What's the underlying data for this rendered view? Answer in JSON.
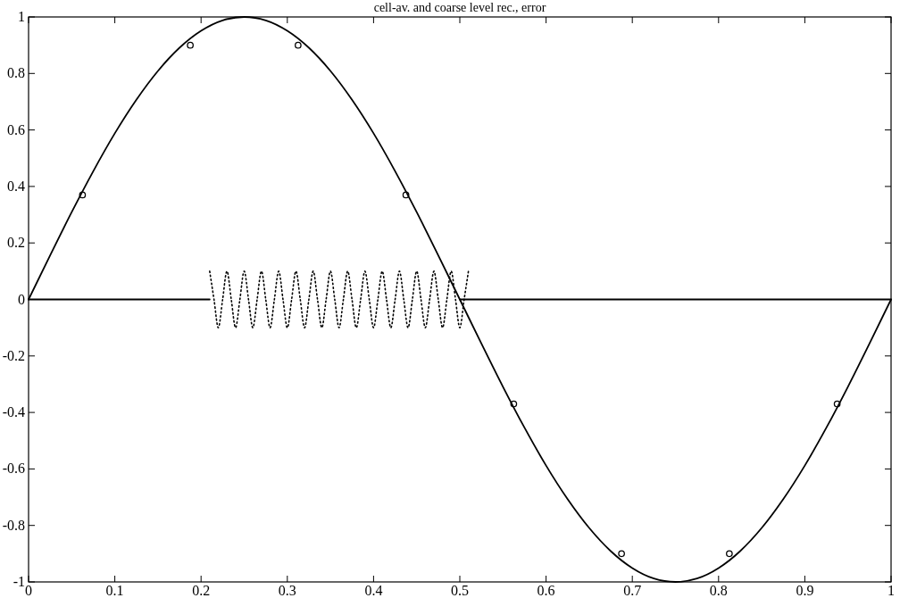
{
  "chart_data": {
    "type": "line",
    "title": "cell-av. and coarse level rec., error",
    "xlim": [
      0,
      1
    ],
    "xticks": [
      0,
      0.1,
      0.2,
      0.3,
      0.4,
      0.5,
      0.6,
      0.7,
      0.8,
      0.9,
      1
    ],
    "ylim": [
      -1,
      1
    ],
    "yticks": [
      -1,
      -0.8,
      -0.6,
      -0.4,
      -0.2,
      0,
      0.2,
      0.4,
      0.6,
      0.8,
      1
    ],
    "grid": false,
    "series": [
      {
        "color": "#000000",
        "line_style": "solid",
        "marker": "none",
        "x": [
          0,
          0.025,
          0.05,
          0.075,
          0.1,
          0.125,
          0.15,
          0.175,
          0.2,
          0.225,
          0.25,
          0.275,
          0.3,
          0.325,
          0.35,
          0.375,
          0.4,
          0.425,
          0.45,
          0.475,
          0.5,
          0.525,
          0.55,
          0.575,
          0.6,
          0.625,
          0.65,
          0.675,
          0.7,
          0.725,
          0.75,
          0.775,
          0.8,
          0.825,
          0.85,
          0.875,
          0.9,
          0.925,
          0.95,
          0.975,
          1
        ],
        "values": [
          0,
          0.156,
          0.309,
          0.454,
          0.588,
          0.707,
          0.809,
          0.891,
          0.951,
          0.988,
          1,
          0.988,
          0.951,
          0.891,
          0.809,
          0.707,
          0.588,
          0.454,
          0.309,
          0.156,
          0,
          -0.156,
          -0.309,
          -0.454,
          -0.588,
          -0.707,
          -0.809,
          -0.891,
          -0.951,
          -0.988,
          -1,
          -0.988,
          -0.951,
          -0.891,
          -0.809,
          -0.707,
          -0.588,
          -0.454,
          -0.309,
          -0.156,
          0
        ]
      },
      {
        "type": "scatter",
        "color": "#000000",
        "marker": "circle",
        "x": [
          0.0625,
          0.1875,
          0.3125,
          0.4375,
          0.5625,
          0.6875,
          0.8125,
          0.9375
        ],
        "values": [
          0.37,
          0.9,
          0.9,
          0.37,
          -0.37,
          -0.9,
          -0.9,
          -0.37
        ]
      },
      {
        "color": "#000000",
        "line_style": "solid",
        "marker": "none",
        "x": [
          0,
          0.21
        ],
        "values": [
          0,
          0
        ]
      },
      {
        "color": "#000000",
        "line_style": "dotted",
        "marker": "none",
        "x": [
          0.21,
          0.215,
          0.22,
          0.225,
          0.23,
          0.235,
          0.24,
          0.245,
          0.25,
          0.255,
          0.26,
          0.265,
          0.27,
          0.275,
          0.28,
          0.285,
          0.29,
          0.295,
          0.3,
          0.305,
          0.31,
          0.315,
          0.32,
          0.325,
          0.33,
          0.335,
          0.34,
          0.345,
          0.35,
          0.355,
          0.36,
          0.365,
          0.37,
          0.375,
          0.38,
          0.385,
          0.39,
          0.395,
          0.4,
          0.405,
          0.41,
          0.415,
          0.42,
          0.425,
          0.43,
          0.435,
          0.44,
          0.445,
          0.45,
          0.455,
          0.46,
          0.465,
          0.47,
          0.475,
          0.48,
          0.485,
          0.49,
          0.495,
          0.5,
          0.505,
          0.51
        ],
        "values": [
          0.1,
          0,
          -0.1,
          0,
          0.1,
          0,
          -0.1,
          0,
          0.1,
          0,
          -0.1,
          0,
          0.1,
          0,
          -0.1,
          0,
          0.1,
          0,
          -0.1,
          0,
          0.1,
          0,
          -0.1,
          0,
          0.1,
          0,
          -0.1,
          0,
          0.1,
          0,
          -0.1,
          0,
          0.1,
          0,
          -0.1,
          0,
          0.1,
          0,
          -0.1,
          0,
          0.1,
          0,
          -0.1,
          0,
          0.1,
          0,
          -0.1,
          0,
          0.1,
          0,
          -0.1,
          0,
          0.1,
          0,
          -0.1,
          0,
          0.1,
          0,
          -0.1,
          0,
          0.1
        ]
      },
      {
        "color": "#000000",
        "line_style": "solid",
        "marker": "none",
        "x": [
          0.5,
          1
        ],
        "values": [
          0,
          0
        ]
      }
    ]
  }
}
